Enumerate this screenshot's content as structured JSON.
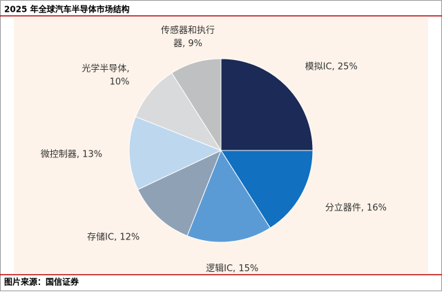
{
  "chart_data": {
    "type": "pie",
    "title": "2025 年全球汽车半导体市场结构",
    "source": "图片来源：国信证券",
    "labels": [
      [
        "模拟IC, 25%"
      ],
      [
        "分立器件, 16%"
      ],
      [
        "逻辑IC, 15%"
      ],
      [
        "存储IC, 12%"
      ],
      [
        "微控制器, 13%"
      ],
      [
        "光学半导体,",
        "10%"
      ],
      [
        "传感器和执行",
        "器, 9%"
      ]
    ],
    "values": [
      25,
      16,
      15,
      12,
      13,
      10,
      9
    ],
    "colors": [
      "#1b2a56",
      "#1170c0",
      "#5b9bd5",
      "#8fa1b5",
      "#bdd7ee",
      "#d9dadc",
      "#bfc0c2"
    ],
    "start_angle": 0,
    "direction": "clockwise"
  }
}
